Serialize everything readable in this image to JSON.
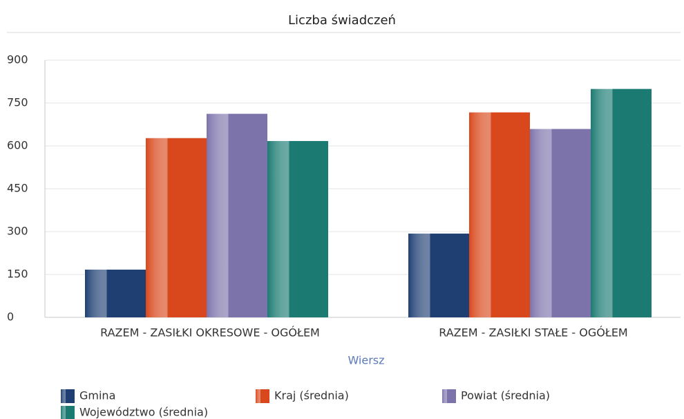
{
  "chart_data": {
    "type": "bar",
    "title": "Liczba świadczeń",
    "x_label": "Wiersz",
    "categories": [
      "RAZEM -  ZASIŁKI OKRESOWE - OGÓŁEM",
      "RAZEM -  ZASIŁKI STAŁE - OGÓŁEM"
    ],
    "series": [
      {
        "name": "Gmina",
        "color": "#1f3f73",
        "values": [
          167,
          293
        ]
      },
      {
        "name": "Kraj (średnia)",
        "color": "#d9481c",
        "values": [
          627,
          717
        ]
      },
      {
        "name": "Powiat (średnia)",
        "color": "#7d73ab",
        "values": [
          712,
          659
        ]
      },
      {
        "name": "Województwo (średnia)",
        "color": "#1b7a72",
        "values": [
          617,
          799
        ]
      }
    ],
    "ylim": [
      0,
      900
    ],
    "yticks": [
      0,
      150,
      300,
      450,
      600,
      750,
      900
    ],
    "grid": true,
    "legend": "bottom"
  }
}
